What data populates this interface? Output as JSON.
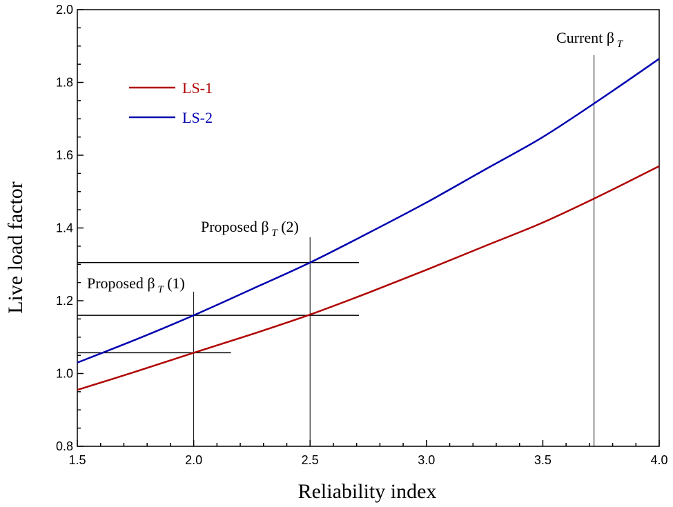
{
  "chart_data": {
    "type": "line",
    "title": "",
    "xlabel": "Reliability index",
    "ylabel": "Live load factor",
    "xlim": [
      1.5,
      4.0
    ],
    "ylim": [
      0.8,
      2.0
    ],
    "x_ticks": [
      1.5,
      2.0,
      2.5,
      3.0,
      3.5,
      4.0
    ],
    "x_tick_labels": [
      "1.5",
      "2.0",
      "2.5",
      "3.0",
      "3.5",
      "4.0"
    ],
    "y_ticks": [
      0.8,
      1.0,
      1.2,
      1.4,
      1.6,
      1.8,
      2.0
    ],
    "y_tick_labels": [
      "0.8",
      "1.0",
      "1.2",
      "1.4",
      "1.6",
      "1.8",
      "2.0"
    ],
    "grid": false,
    "legend_position": "top-left",
    "series": [
      {
        "name": "LS-1",
        "color": "#b00000",
        "x": [
          1.5,
          1.75,
          2.0,
          2.25,
          2.5,
          2.75,
          3.0,
          3.25,
          3.5,
          3.75,
          4.0
        ],
        "y": [
          0.955,
          1.005,
          1.057,
          1.108,
          1.162,
          1.222,
          1.285,
          1.35,
          1.415,
          1.49,
          1.57
        ]
      },
      {
        "name": "LS-2",
        "color": "#0000b0",
        "x": [
          1.5,
          1.75,
          2.0,
          2.25,
          2.5,
          2.75,
          3.0,
          3.25,
          3.5,
          3.75,
          4.0
        ],
        "y": [
          1.03,
          1.093,
          1.16,
          1.232,
          1.305,
          1.386,
          1.47,
          1.56,
          1.65,
          1.755,
          1.865
        ]
      }
    ],
    "annotations": [
      {
        "id": "proposed-1",
        "beta": 2.0,
        "label": "Proposed β",
        "subscript": "T",
        "suffix": " (1)"
      },
      {
        "id": "proposed-2",
        "beta": 2.5,
        "label": "Proposed β",
        "subscript": "T",
        "suffix": " (2)"
      },
      {
        "id": "current",
        "beta": 3.72,
        "label": "Current β",
        "subscript": "T",
        "suffix": ""
      }
    ],
    "reference_lines": {
      "vertical": [
        {
          "x": 2.0,
          "y_top": 1.225
        },
        {
          "x": 2.5,
          "y_top": 1.375
        },
        {
          "x": 3.72,
          "y_top": 1.875
        }
      ],
      "horizontal": [
        {
          "y": 1.057,
          "x_end": 2.16
        },
        {
          "y": 1.16,
          "x_end": 2.71
        },
        {
          "y": 1.305,
          "x_end": 2.71
        }
      ]
    }
  }
}
